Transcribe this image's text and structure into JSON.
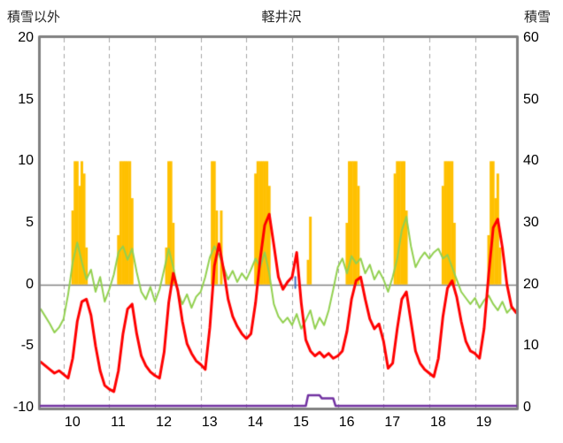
{
  "chart_data": {
    "type": "line",
    "title": "軽井沢",
    "x_axis": {
      "min": 9.5,
      "max": 19.9,
      "tick_positions": [
        10,
        11,
        12,
        13,
        14,
        15,
        16,
        17,
        18,
        19
      ],
      "tick_labels": [
        "10",
        "11",
        "12",
        "13",
        "14",
        "15",
        "16",
        "17",
        "18",
        "19"
      ],
      "gridline_style": "dashed"
    },
    "left_axis": {
      "label": "積雪以外",
      "min": -10,
      "max": 20,
      "ticks": [
        20,
        15,
        10,
        5,
        0,
        -5,
        -10
      ]
    },
    "right_axis": {
      "label": "積雪",
      "min": 0,
      "max": 60,
      "ticks": [
        60,
        50,
        40,
        30,
        20,
        10,
        0
      ]
    },
    "zero_line_left": 0,
    "frame_color": "#808080",
    "gridline_color": "#A6A6A6",
    "series": [
      {
        "name": "green-line",
        "axis": "left",
        "color": "#92D050",
        "line_width": 2,
        "x_start": 9.5,
        "x_step": 0.1,
        "values": [
          -2.0,
          -2.6,
          -3.2,
          -3.9,
          -3.5,
          -2.8,
          -0.8,
          1.8,
          3.4,
          1.8,
          0.4,
          1.2,
          -0.6,
          0.6,
          -1.4,
          -0.4,
          0.8,
          2.6,
          3.1,
          2.0,
          2.9,
          1.0,
          -0.6,
          -1.2,
          -0.2,
          -1.4,
          -0.4,
          1.2,
          2.9,
          1.4,
          -0.6,
          -1.6,
          -0.8,
          -1.9,
          -1.0,
          -0.6,
          0.6,
          2.2,
          3.1,
          2.4,
          1.4,
          0.4,
          1.1,
          0.2,
          0.9,
          0.4,
          1.2,
          2.1,
          1.4,
          2.6,
          0.9,
          -1.6,
          -2.6,
          -3.1,
          -2.7,
          -3.3,
          -2.4,
          -3.6,
          -2.9,
          -2.1,
          -3.6,
          -2.7,
          -3.3,
          -2.1,
          -0.4,
          1.4,
          2.1,
          0.9,
          2.3,
          1.7,
          2.1,
          0.9,
          1.6,
          0.4,
          1.1,
          0.4,
          -0.6,
          0.6,
          2.1,
          4.4,
          5.5,
          3.1,
          1.4,
          2.1,
          2.6,
          2.1,
          2.6,
          2.9,
          2.1,
          2.4,
          1.4,
          0.4,
          -0.6,
          -1.1,
          -1.6,
          -1.1,
          -1.9,
          -1.3,
          -0.9,
          -1.6,
          -2.1,
          -1.4,
          -2.3,
          -1.9,
          -2.1
        ]
      },
      {
        "name": "red-line",
        "axis": "left",
        "color": "#FF0000",
        "line_width": 3,
        "x_start": 9.5,
        "x_step": 0.1,
        "values": [
          -6.3,
          -6.6,
          -6.9,
          -7.2,
          -7.0,
          -7.3,
          -7.6,
          -6.0,
          -3.0,
          -1.4,
          -1.2,
          -2.5,
          -5.0,
          -7.0,
          -8.2,
          -8.5,
          -8.7,
          -7.0,
          -4.0,
          -2.0,
          -1.6,
          -4.0,
          -5.8,
          -6.6,
          -7.1,
          -7.4,
          -7.6,
          -5.5,
          -1.5,
          0.9,
          -0.5,
          -3.0,
          -4.8,
          -5.6,
          -6.2,
          -6.5,
          -6.9,
          -3.5,
          1.5,
          3.3,
          1.2,
          -1.2,
          -2.6,
          -3.4,
          -4.0,
          -4.4,
          -4.0,
          -1.5,
          2.0,
          4.8,
          5.7,
          3.2,
          0.6,
          -0.4,
          0.2,
          0.6,
          2.6,
          -1.5,
          -4.5,
          -5.4,
          -5.8,
          -5.5,
          -5.9,
          -5.6,
          -6.0,
          -5.8,
          -5.4,
          -3.8,
          -1.2,
          0.3,
          0.6,
          -1.2,
          -2.8,
          -3.6,
          -3.2,
          -4.6,
          -6.8,
          -6.4,
          -3.6,
          -1.2,
          -0.6,
          -3.0,
          -5.4,
          -6.4,
          -6.9,
          -7.2,
          -7.5,
          -6.0,
          -2.6,
          -0.3,
          0.3,
          -1.0,
          -3.0,
          -4.6,
          -5.4,
          -5.6,
          -6.0,
          -3.6,
          0.8,
          4.6,
          5.3,
          3.0,
          0.0,
          -1.8,
          -2.3
        ]
      }
    ],
    "bars": {
      "name": "orange-bars",
      "axis": "left",
      "color": "#FFC000",
      "width_days": 0.055,
      "baseline": 0,
      "points": [
        [
          10.2,
          6
        ],
        [
          10.25,
          10
        ],
        [
          10.3,
          10
        ],
        [
          10.35,
          8
        ],
        [
          10.4,
          10
        ],
        [
          10.45,
          9
        ],
        [
          10.5,
          3
        ],
        [
          11.2,
          4
        ],
        [
          11.25,
          10
        ],
        [
          11.3,
          10
        ],
        [
          11.35,
          10
        ],
        [
          11.4,
          10
        ],
        [
          11.45,
          10
        ],
        [
          11.5,
          7
        ],
        [
          12.25,
          3
        ],
        [
          12.3,
          10
        ],
        [
          12.35,
          10
        ],
        [
          12.4,
          5
        ],
        [
          13.25,
          10
        ],
        [
          13.3,
          10
        ],
        [
          13.35,
          6
        ],
        [
          13.45,
          6
        ],
        [
          14.2,
          9
        ],
        [
          14.25,
          10
        ],
        [
          14.3,
          10
        ],
        [
          14.35,
          10
        ],
        [
          14.4,
          10
        ],
        [
          14.45,
          10
        ],
        [
          14.5,
          8
        ],
        [
          15.35,
          2
        ],
        [
          15.4,
          5.5
        ],
        [
          16.2,
          5
        ],
        [
          16.25,
          10
        ],
        [
          16.3,
          10
        ],
        [
          16.35,
          10
        ],
        [
          16.4,
          10
        ],
        [
          16.45,
          8
        ],
        [
          17.25,
          9
        ],
        [
          17.3,
          10
        ],
        [
          17.35,
          10
        ],
        [
          17.4,
          10
        ],
        [
          17.45,
          10
        ],
        [
          17.5,
          6
        ],
        [
          18.3,
          8
        ],
        [
          18.35,
          10
        ],
        [
          18.4,
          10
        ],
        [
          18.45,
          10
        ],
        [
          18.5,
          10
        ],
        [
          18.55,
          5
        ],
        [
          19.3,
          4
        ],
        [
          19.35,
          10
        ],
        [
          19.4,
          10
        ],
        [
          19.45,
          7
        ],
        [
          19.5,
          9
        ],
        [
          19.55,
          3
        ]
      ]
    },
    "snow_series": {
      "name": "purple-snow-line",
      "axis": "right",
      "color": "#7030A0",
      "line_width": 2.5,
      "points": [
        [
          9.5,
          0
        ],
        [
          15.3,
          0
        ],
        [
          15.35,
          2
        ],
        [
          15.6,
          2
        ],
        [
          15.65,
          1.5
        ],
        [
          15.9,
          1.5
        ],
        [
          15.95,
          0
        ],
        [
          19.9,
          0
        ]
      ]
    },
    "extra_marks": [
      {
        "name": "blue-mark",
        "axis": "left",
        "color": "#4472C4",
        "x": 15.07,
        "y1": -0.3,
        "y2": 0.6
      }
    ]
  }
}
